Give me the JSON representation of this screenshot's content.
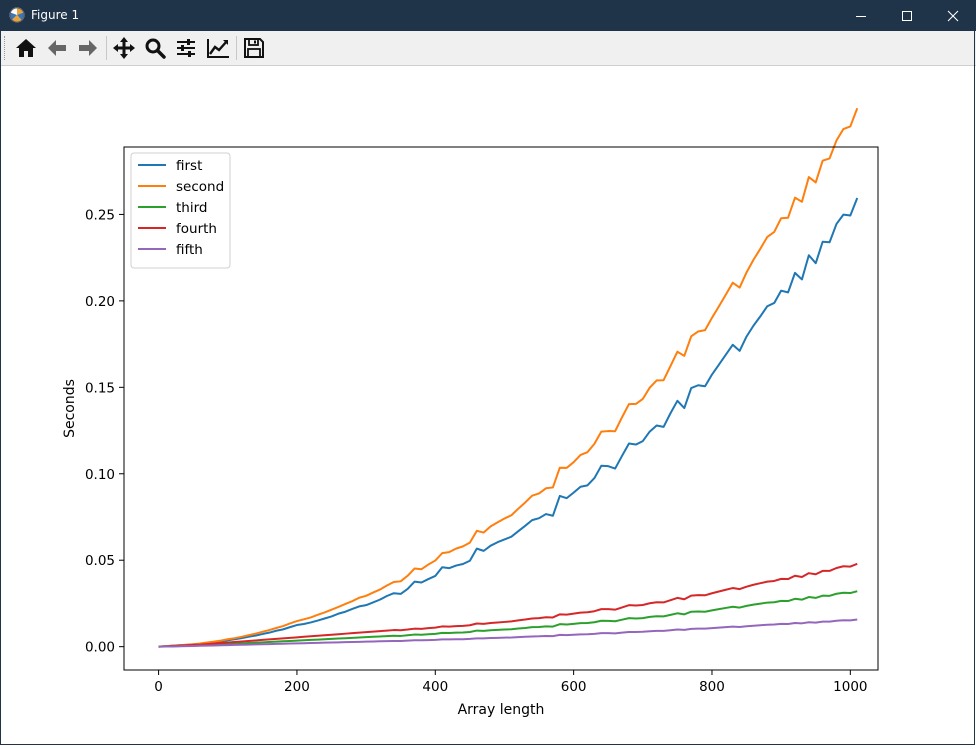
{
  "window": {
    "title": "Figure 1",
    "app_icon": "matplotlib-icon",
    "controls": [
      "minimize-icon",
      "maximize-icon",
      "close-icon"
    ]
  },
  "toolbar": {
    "buttons": [
      {
        "name": "home-button",
        "icon": "home-icon"
      },
      {
        "name": "back-button",
        "icon": "back-arrow-icon"
      },
      {
        "name": "forward-button",
        "icon": "forward-arrow-icon"
      },
      {
        "name": "pan-button",
        "icon": "move-icon"
      },
      {
        "name": "zoom-button",
        "icon": "magnifier-icon"
      },
      {
        "name": "subplots-button",
        "icon": "sliders-icon"
      },
      {
        "name": "edit-axis-button",
        "icon": "chart-line-icon"
      },
      {
        "name": "save-button",
        "icon": "floppy-disk-icon"
      }
    ]
  },
  "chart_data": {
    "type": "line",
    "title": "",
    "xlabel": "Array length",
    "ylabel": "Seconds",
    "xlim": [
      -50,
      1040
    ],
    "ylim": [
      -0.0135,
      0.289
    ],
    "xticks": [
      0,
      200,
      400,
      600,
      800,
      1000
    ],
    "xtick_labels": [
      "0",
      "200",
      "400",
      "600",
      "800",
      "1000"
    ],
    "yticks": [
      0.0,
      0.05,
      0.1,
      0.15,
      0.2,
      0.25
    ],
    "ytick_labels": [
      "0.00",
      "0.05",
      "0.10",
      "0.15",
      "0.20",
      "0.25"
    ],
    "grid": false,
    "legend_position": "upper-left",
    "x_range": {
      "start": 0,
      "step": 10,
      "count": 100
    },
    "series": [
      {
        "name": "first",
        "color": "#1f77b4",
        "values": [
          0.0,
          0.0002,
          0.0006,
          0.0008,
          0.001,
          0.0013,
          0.0016,
          0.0021,
          0.0025,
          0.003,
          0.0037,
          0.0043,
          0.0049,
          0.0057,
          0.0064,
          0.0073,
          0.0081,
          0.0092,
          0.01,
          0.0113,
          0.0125,
          0.0131,
          0.014,
          0.0151,
          0.0163,
          0.0175,
          0.0191,
          0.0202,
          0.0218,
          0.0233,
          0.024,
          0.0256,
          0.0272,
          0.0293,
          0.0309,
          0.0305,
          0.0334,
          0.0376,
          0.0371,
          0.0391,
          0.0409,
          0.0459,
          0.0454,
          0.0469,
          0.0478,
          0.0497,
          0.0567,
          0.0554,
          0.0584,
          0.0604,
          0.062,
          0.0636,
          0.0668,
          0.0699,
          0.0732,
          0.0743,
          0.0767,
          0.0757,
          0.0872,
          0.0859,
          0.0891,
          0.0925,
          0.0933,
          0.0975,
          0.1046,
          0.1044,
          0.103,
          0.1104,
          0.1175,
          0.1169,
          0.1189,
          0.1244,
          0.1279,
          0.1271,
          0.135,
          0.1422,
          0.138,
          0.1496,
          0.1512,
          0.1506,
          0.1574,
          0.1631,
          0.1689,
          0.1746,
          0.1711,
          0.1794,
          0.1857,
          0.1911,
          0.1969,
          0.1988,
          0.2059,
          0.2049,
          0.2162,
          0.2124,
          0.2264,
          0.2218,
          0.2342,
          0.2339,
          0.2445,
          0.2499,
          0.2494,
          0.2595
        ]
      },
      {
        "name": "second",
        "color": "#ff7f0e",
        "values": [
          0.0,
          0.0003,
          0.0005,
          0.0008,
          0.0011,
          0.0014,
          0.0018,
          0.0024,
          0.0029,
          0.0035,
          0.0043,
          0.0049,
          0.0057,
          0.0066,
          0.0075,
          0.0086,
          0.0096,
          0.0108,
          0.0119,
          0.0134,
          0.0148,
          0.0158,
          0.0169,
          0.0184,
          0.0198,
          0.0214,
          0.023,
          0.0247,
          0.0263,
          0.0283,
          0.0294,
          0.0313,
          0.033,
          0.0354,
          0.0374,
          0.0378,
          0.041,
          0.0452,
          0.0448,
          0.0475,
          0.0498,
          0.0541,
          0.0547,
          0.0567,
          0.058,
          0.0602,
          0.067,
          0.066,
          0.0696,
          0.0719,
          0.0741,
          0.076,
          0.0798,
          0.0834,
          0.0873,
          0.0886,
          0.0916,
          0.0921,
          0.1035,
          0.1034,
          0.1067,
          0.1109,
          0.1125,
          0.1173,
          0.1244,
          0.1247,
          0.1246,
          0.1327,
          0.1403,
          0.1404,
          0.1433,
          0.1498,
          0.154,
          0.1541,
          0.1623,
          0.1706,
          0.1682,
          0.1795,
          0.1823,
          0.1831,
          0.1902,
          0.1968,
          0.2036,
          0.2105,
          0.2077,
          0.2165,
          0.2238,
          0.2302,
          0.237,
          0.2399,
          0.2478,
          0.2481,
          0.2597,
          0.2573,
          0.2716,
          0.2685,
          0.2811,
          0.2824,
          0.2928,
          0.2994,
          0.3009,
          0.3114
        ]
      },
      {
        "name": "third",
        "color": "#2ca02c",
        "values": [
          0.0,
          0.0001,
          0.0002,
          0.0003,
          0.0005,
          0.0006,
          0.0007,
          0.0009,
          0.0011,
          0.0013,
          0.0015,
          0.0017,
          0.0019,
          0.0021,
          0.0023,
          0.0025,
          0.0027,
          0.0029,
          0.0031,
          0.0033,
          0.0035,
          0.0037,
          0.0039,
          0.0041,
          0.0043,
          0.0045,
          0.0047,
          0.0049,
          0.0051,
          0.0053,
          0.0055,
          0.0057,
          0.0059,
          0.0061,
          0.0063,
          0.0062,
          0.0066,
          0.007,
          0.0069,
          0.0072,
          0.0074,
          0.008,
          0.0079,
          0.0081,
          0.0082,
          0.0085,
          0.0093,
          0.0091,
          0.0095,
          0.0097,
          0.0099,
          0.0101,
          0.0105,
          0.0108,
          0.0113,
          0.0114,
          0.0117,
          0.0116,
          0.013,
          0.0128,
          0.0132,
          0.0136,
          0.0137,
          0.0141,
          0.015,
          0.0149,
          0.0147,
          0.0156,
          0.0165,
          0.0163,
          0.0165,
          0.0172,
          0.0176,
          0.0175,
          0.0184,
          0.0193,
          0.0187,
          0.0202,
          0.0203,
          0.0202,
          0.021,
          0.0217,
          0.0224,
          0.0231,
          0.0226,
          0.0236,
          0.0243,
          0.0249,
          0.0255,
          0.0257,
          0.0265,
          0.0264,
          0.0277,
          0.0272,
          0.0287,
          0.0282,
          0.0295,
          0.0294,
          0.0306,
          0.0312,
          0.031,
          0.0321
        ]
      },
      {
        "name": "fourth",
        "color": "#d62728",
        "values": [
          0.0,
          0.0002,
          0.0004,
          0.0006,
          0.0008,
          0.001,
          0.0012,
          0.0015,
          0.0018,
          0.0021,
          0.0024,
          0.0027,
          0.003,
          0.0033,
          0.0036,
          0.0039,
          0.0042,
          0.0045,
          0.0048,
          0.0051,
          0.0054,
          0.0057,
          0.006,
          0.0063,
          0.0066,
          0.0069,
          0.0072,
          0.0075,
          0.0078,
          0.0081,
          0.0084,
          0.0087,
          0.009,
          0.0093,
          0.0096,
          0.0095,
          0.0099,
          0.0104,
          0.0103,
          0.0107,
          0.011,
          0.0117,
          0.0116,
          0.0119,
          0.012,
          0.0124,
          0.0134,
          0.0132,
          0.0137,
          0.014,
          0.0143,
          0.0146,
          0.0152,
          0.0157,
          0.0163,
          0.0165,
          0.017,
          0.0169,
          0.0187,
          0.0185,
          0.0191,
          0.0197,
          0.0199,
          0.0205,
          0.0217,
          0.0217,
          0.0214,
          0.0227,
          0.024,
          0.0238,
          0.0241,
          0.0251,
          0.0257,
          0.0256,
          0.0269,
          0.0282,
          0.0274,
          0.0295,
          0.0298,
          0.0297,
          0.0309,
          0.0319,
          0.0329,
          0.0339,
          0.0333,
          0.0347,
          0.0358,
          0.0367,
          0.0376,
          0.038,
          0.0392,
          0.0391,
          0.041,
          0.0403,
          0.0425,
          0.0419,
          0.0438,
          0.0438,
          0.0455,
          0.0465,
          0.0463,
          0.0479
        ]
      },
      {
        "name": "fifth",
        "color": "#9467bd",
        "values": [
          0.0,
          0.0001,
          0.0001,
          0.0002,
          0.0003,
          0.0004,
          0.0005,
          0.0006,
          0.0007,
          0.0008,
          0.0009,
          0.001,
          0.0011,
          0.0012,
          0.0013,
          0.0014,
          0.0015,
          0.0016,
          0.0017,
          0.0018,
          0.0019,
          0.002,
          0.0021,
          0.0022,
          0.0023,
          0.0024,
          0.0025,
          0.0026,
          0.0027,
          0.0028,
          0.0029,
          0.003,
          0.0031,
          0.0032,
          0.0033,
          0.0033,
          0.0035,
          0.0037,
          0.0037,
          0.0038,
          0.0039,
          0.0042,
          0.0042,
          0.0043,
          0.0043,
          0.0045,
          0.0048,
          0.0048,
          0.005,
          0.0051,
          0.0052,
          0.0053,
          0.0055,
          0.0057,
          0.0059,
          0.006,
          0.0062,
          0.0061,
          0.0068,
          0.0067,
          0.0069,
          0.0071,
          0.0072,
          0.0074,
          0.0078,
          0.0078,
          0.0077,
          0.0081,
          0.0085,
          0.0085,
          0.0086,
          0.0089,
          0.0091,
          0.0091,
          0.0095,
          0.0099,
          0.0097,
          0.0103,
          0.0104,
          0.0104,
          0.0107,
          0.011,
          0.0113,
          0.0116,
          0.0114,
          0.0118,
          0.0121,
          0.0124,
          0.0127,
          0.0128,
          0.0132,
          0.0131,
          0.0137,
          0.0135,
          0.0141,
          0.0139,
          0.0145,
          0.0145,
          0.015,
          0.0153,
          0.0152,
          0.0157
        ]
      }
    ]
  }
}
